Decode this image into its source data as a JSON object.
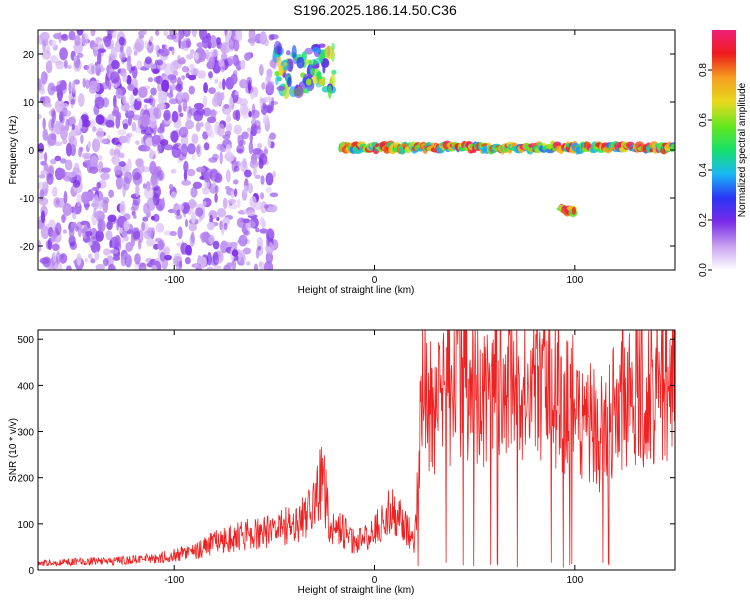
{
  "figure": {
    "title": "S196.2025.186.14.50.C36"
  },
  "chart_data": [
    {
      "type": "heatmap",
      "title": "S196.2025.186.14.50.C36",
      "xlabel": "Height of straight line (km)",
      "ylabel": "Frequency (Hz)",
      "xlim": [
        -168,
        150
      ],
      "ylim": [
        -25,
        25
      ],
      "x_ticks": [
        -100,
        0,
        100
      ],
      "y_ticks": [
        -20,
        -10,
        0,
        10,
        20
      ],
      "colorbar": {
        "label": "Normalized spectral amplitude",
        "range": [
          0,
          0.96
        ],
        "ticks": [
          "0.0",
          "0.2",
          "0.4",
          "0.6",
          "0.8"
        ],
        "colormap": [
          "#ffffff",
          "#c8a0f0",
          "#7a2be8",
          "#2a35f5",
          "#19b8f5",
          "#16e06a",
          "#66e81e",
          "#e8d81e",
          "#f5a020",
          "#ee1c1c",
          "#f0207a"
        ]
      },
      "features": [
        {
          "label": "diffuse scatter",
          "x_range": [
            -168,
            -50
          ],
          "y_range": [
            -25,
            25
          ],
          "amplitude": 0.15
        },
        {
          "label": "upper band",
          "x_range": [
            -50,
            -20
          ],
          "y_range": [
            12,
            22
          ],
          "amplitude": 0.55
        },
        {
          "label": "main band",
          "x_range": [
            -17,
            150
          ],
          "y_center": 0.5,
          "amplitude": 0.8
        },
        {
          "label": "low tone",
          "x_range": [
            93,
            100
          ],
          "y_center": -12.5,
          "amplitude": 0.9
        }
      ]
    },
    {
      "type": "line",
      "xlabel": "Height of straight line (km)",
      "ylabel": "SNR (10 * v/v)",
      "xlim": [
        -168,
        150
      ],
      "ylim": [
        0,
        520
      ],
      "x_ticks": [
        -100,
        0,
        100
      ],
      "y_ticks": [
        0,
        100,
        200,
        300,
        400,
        500
      ],
      "line_color": "#ee2222",
      "series": [
        {
          "x": [
            -168,
            -150,
            -130,
            -110,
            -90,
            -80,
            -70,
            -60,
            -50,
            -40,
            -30,
            -26,
            -22,
            -20,
            -10,
            0,
            5,
            10,
            15,
            20,
            22,
            25,
            27,
            30,
            35,
            40,
            45,
            50,
            55,
            60,
            65,
            70,
            75,
            80,
            85,
            90,
            95,
            100,
            105,
            110,
            115,
            118,
            120,
            130,
            140,
            150
          ],
          "y": [
            15,
            18,
            20,
            25,
            40,
            60,
            70,
            80,
            90,
            100,
            140,
            200,
            90,
            100,
            60,
            80,
            120,
            130,
            100,
            60,
            250,
            420,
            340,
            360,
            380,
            400,
            420,
            400,
            390,
            420,
            400,
            430,
            410,
            390,
            400,
            380,
            370,
            350,
            330,
            310,
            290,
            320,
            390,
            400,
            395,
            400
          ]
        }
      ]
    }
  ]
}
